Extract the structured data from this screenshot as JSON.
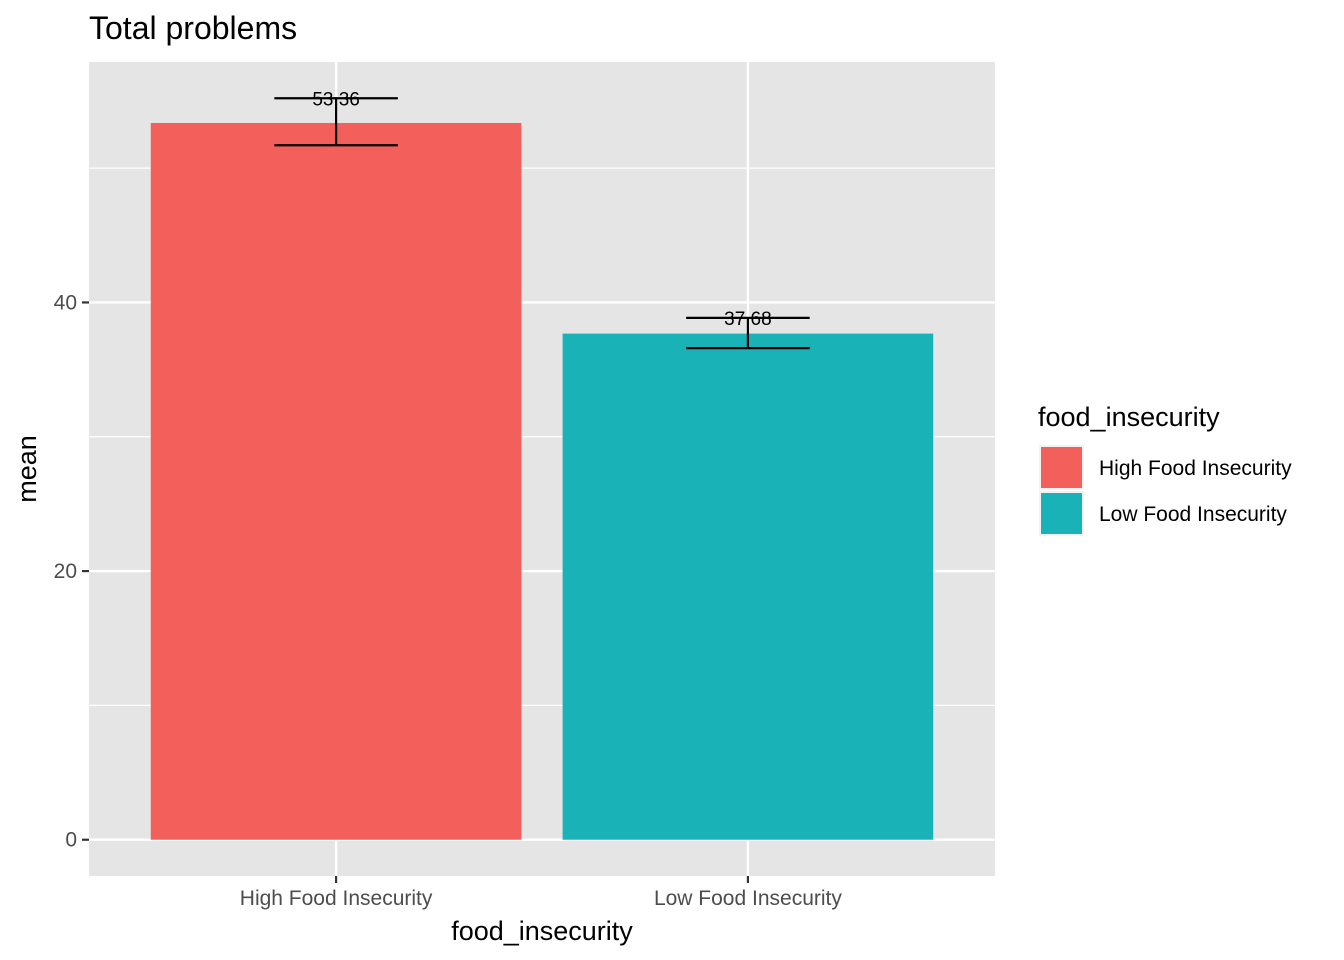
{
  "chart_data": {
    "type": "bar",
    "title": "Total problems",
    "xlabel": "food_insecurity",
    "ylabel": "mean",
    "categories": [
      "High Food Insecurity",
      "Low Food Insecurity"
    ],
    "values": [
      53.36,
      37.68
    ],
    "value_labels": [
      "53.36",
      "37.68"
    ],
    "error_low": [
      51.7,
      36.6
    ],
    "error_high": [
      55.2,
      38.85
    ],
    "colors": [
      "#F35F5B",
      "#19B3B7"
    ],
    "ylim": [
      -2.7,
      57.9
    ],
    "yticks": [
      0,
      20,
      40
    ],
    "ytick_labels": [
      "0",
      "20",
      "40"
    ],
    "grid": true,
    "panel_background": "#E5E5E5",
    "legend": {
      "title": "food_insecurity",
      "position": "right",
      "entries": [
        "High Food Insecurity",
        "Low Food Insecurity"
      ]
    }
  }
}
